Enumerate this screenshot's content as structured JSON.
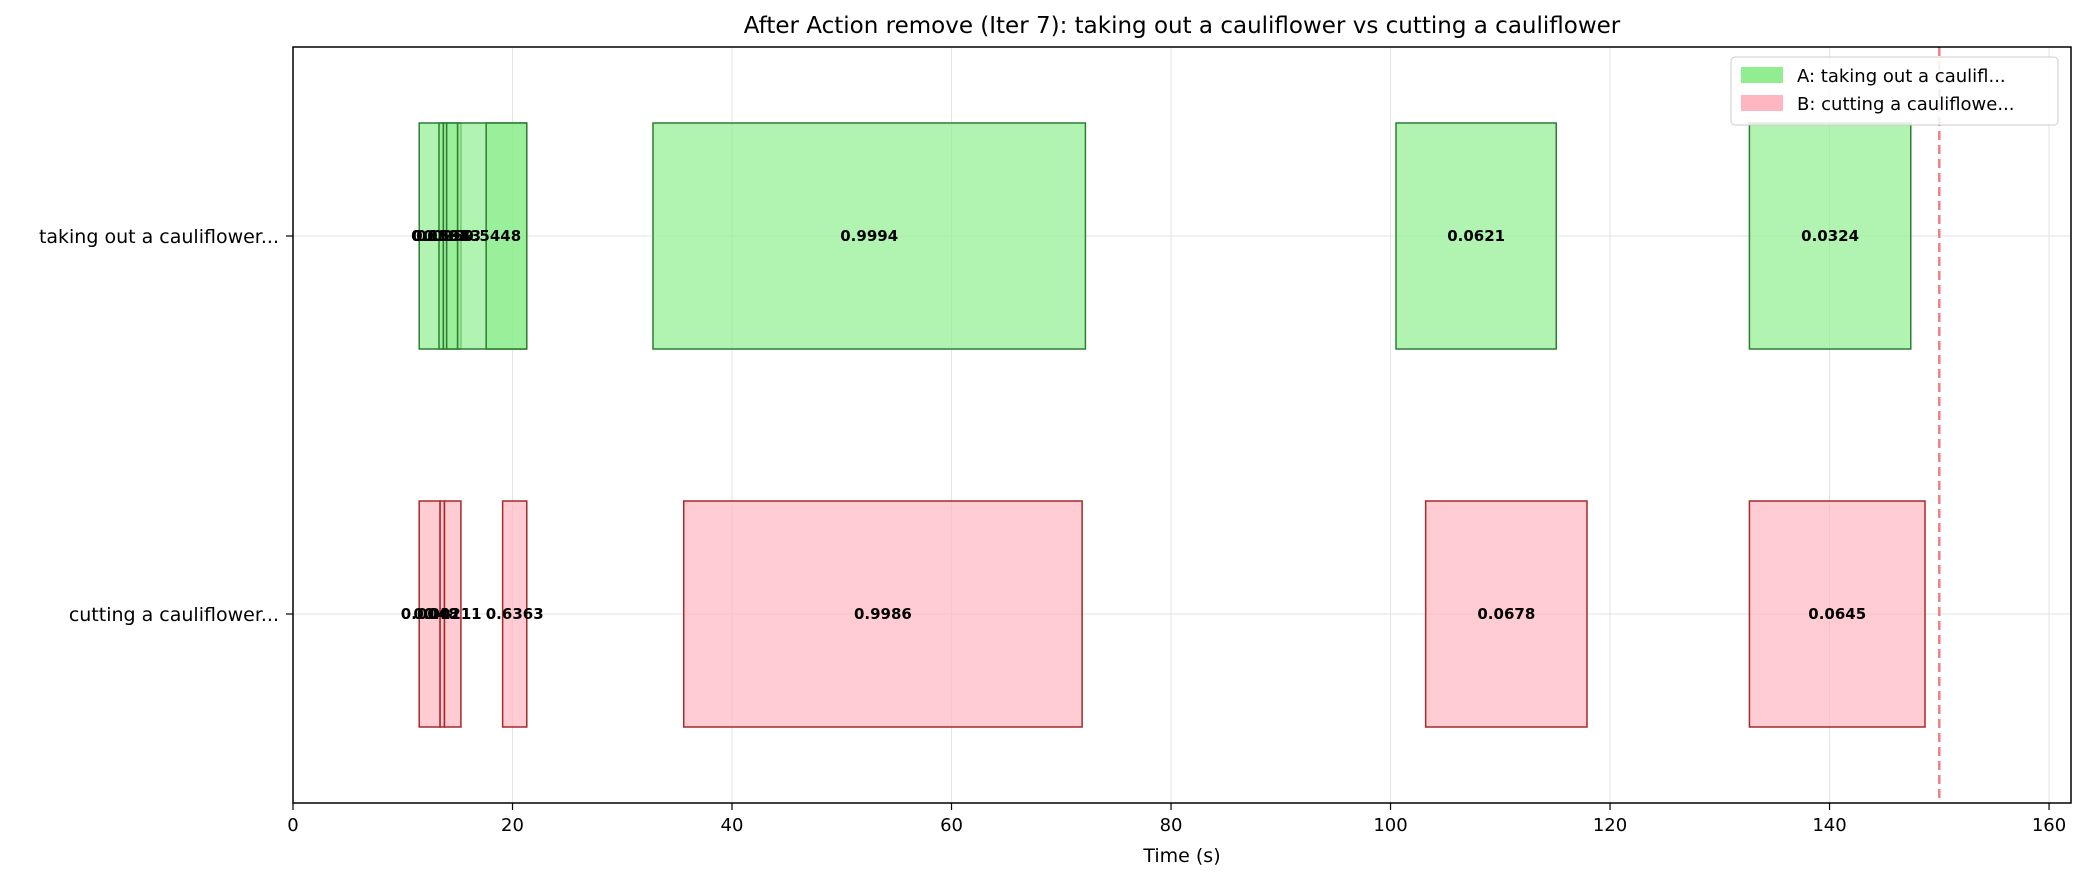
{
  "chart_data": {
    "type": "bar",
    "orientation": "horizontal-timeline",
    "title": "After Action remove (Iter 7): taking out a cauliflower vs cutting a cauliflower",
    "xlabel": "Time (s)",
    "ylabel": "",
    "xlim": [
      0,
      162
    ],
    "xticks": [
      0,
      20,
      40,
      60,
      80,
      100,
      120,
      140,
      160
    ],
    "grid": true,
    "legend_position": "top-right",
    "categories": [
      "taking out a cauliflower...",
      "cutting a cauliflower..."
    ],
    "threshold_line": {
      "x": 150,
      "color": "#f08080",
      "style": "dashed"
    },
    "series": [
      {
        "name": "A: taking out a caulifl...",
        "category": "taking out a cauliflower...",
        "fill": "#90ee90",
        "edge": "#2e7d32",
        "segments": [
          {
            "start": 11.5,
            "end": 15.3,
            "label": "0.0181"
          },
          {
            "start": 13.3,
            "end": 13.7,
            "label": "0.1388"
          },
          {
            "start": 13.7,
            "end": 14.0,
            "label": "0.0259"
          },
          {
            "start": 14.0,
            "end": 15.0,
            "label": "0.5943"
          },
          {
            "start": 15.0,
            "end": 21.3,
            "label": "0.5448"
          },
          {
            "start": 17.6,
            "end": 21.3,
            "label": ""
          },
          {
            "start": 32.8,
            "end": 72.2,
            "label": "0.9994"
          },
          {
            "start": 100.5,
            "end": 115.1,
            "label": "0.0621"
          },
          {
            "start": 132.7,
            "end": 147.4,
            "label": "0.0324"
          }
        ]
      },
      {
        "name": "B: cutting a cauliflowe...",
        "category": "cutting a cauliflower...",
        "fill": "#ffb6c1",
        "edge": "#a52a2a",
        "segments": [
          {
            "start": 11.5,
            "end": 13.4,
            "label": "0.0048"
          },
          {
            "start": 13.4,
            "end": 13.8,
            "label": "0.0121"
          },
          {
            "start": 13.8,
            "end": 15.3,
            "label": "0.0111"
          },
          {
            "start": 19.1,
            "end": 21.3,
            "label": "0.6363"
          },
          {
            "start": 35.6,
            "end": 71.9,
            "label": "0.9986"
          },
          {
            "start": 103.2,
            "end": 117.9,
            "label": "0.0678"
          },
          {
            "start": 132.7,
            "end": 148.7,
            "label": "0.0645"
          }
        ]
      }
    ]
  }
}
